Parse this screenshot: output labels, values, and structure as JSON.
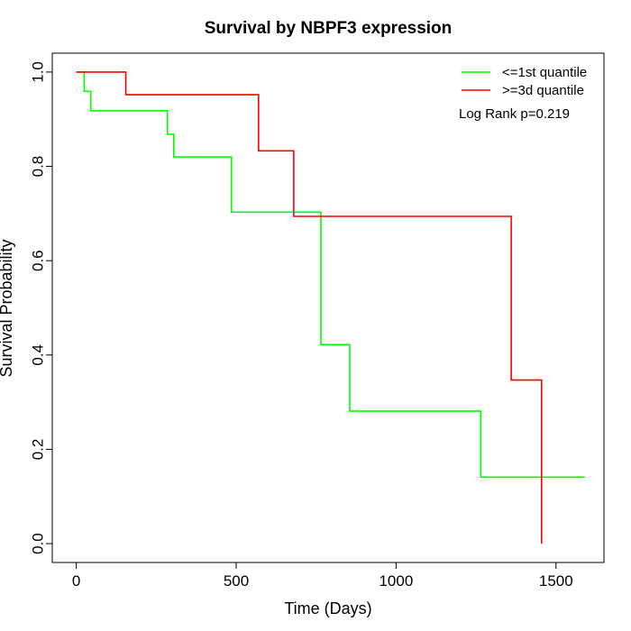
{
  "chart_data": {
    "type": "line",
    "title": "Survival by NBPF3 expression",
    "xlabel": "Time (Days)",
    "ylabel": "Survival Probability",
    "xlim": [
      -75,
      1650
    ],
    "ylim": [
      -0.04,
      1.04
    ],
    "xticks": [
      0,
      500,
      1000,
      1500
    ],
    "xtick_labels": [
      "0",
      "500",
      "1000",
      "1500"
    ],
    "yticks": [
      0.0,
      0.2,
      0.4,
      0.6,
      0.8,
      1.0
    ],
    "ytick_labels": [
      "0.0",
      "0.2",
      "0.4",
      "0.6",
      "0.8",
      "1.0"
    ],
    "grid": false,
    "legend": {
      "position": "top-right"
    },
    "annotation": "Log Rank p=0.219",
    "series": [
      {
        "name": "<=1st quantile",
        "color": "#00ff00",
        "step": true,
        "x": [
          0,
          25,
          45,
          285,
          305,
          485,
          760,
          765,
          855,
          1265,
          1590
        ],
        "y": [
          1.0,
          0.959,
          0.918,
          0.868,
          0.82,
          0.703,
          0.703,
          0.422,
          0.281,
          0.141,
          0.141
        ]
      },
      {
        "name": ">=3d quantile",
        "color": "#ff0000",
        "step": true,
        "x": [
          0,
          155,
          570,
          680,
          1360,
          1455,
          1455
        ],
        "y": [
          1.0,
          0.952,
          0.833,
          0.694,
          0.347,
          0.347,
          0.0
        ]
      }
    ]
  }
}
